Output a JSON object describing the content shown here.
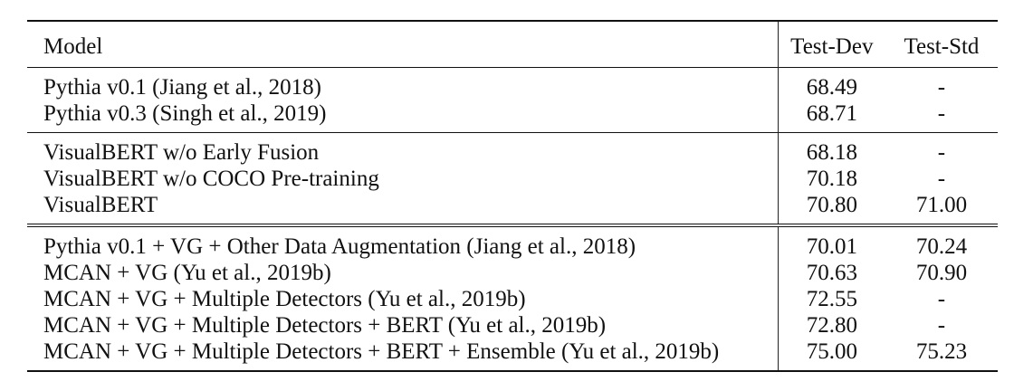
{
  "table": {
    "headers": {
      "model": "Model",
      "test_dev": "Test-Dev",
      "test_std": "Test-Std"
    },
    "groups": [
      {
        "rows": [
          {
            "model": "Pythia v0.1 (Jiang et al., 2018)",
            "test_dev": "68.49",
            "test_std": "-"
          },
          {
            "model": "Pythia v0.3 (Singh et al., 2019)",
            "test_dev": "68.71",
            "test_std": "-"
          }
        ]
      },
      {
        "rows": [
          {
            "model": "VisualBERT w/o Early Fusion",
            "test_dev": "68.18",
            "test_std": "-"
          },
          {
            "model": "VisualBERT w/o COCO Pre-training",
            "test_dev": "70.18",
            "test_std": "-"
          },
          {
            "model": "VisualBERT",
            "test_dev": "70.80",
            "test_std": "71.00"
          }
        ]
      },
      {
        "rows": [
          {
            "model": "Pythia v0.1 + VG + Other Data Augmentation (Jiang et al., 2018)",
            "test_dev": "70.01",
            "test_std": "70.24"
          },
          {
            "model": "MCAN + VG  (Yu et al., 2019b)",
            "test_dev": "70.63",
            "test_std": "70.90"
          },
          {
            "model": "MCAN + VG + Multiple Detectors (Yu et al., 2019b)",
            "test_dev": "72.55",
            "test_std": "-"
          },
          {
            "model": "MCAN + VG + Multiple Detectors + BERT (Yu et al., 2019b)",
            "test_dev": "72.80",
            "test_std": "-"
          },
          {
            "model": "MCAN + VG + Multiple Detectors + BERT + Ensemble (Yu et al., 2019b)",
            "test_dev": "75.00",
            "test_std": "75.23"
          }
        ]
      }
    ]
  }
}
